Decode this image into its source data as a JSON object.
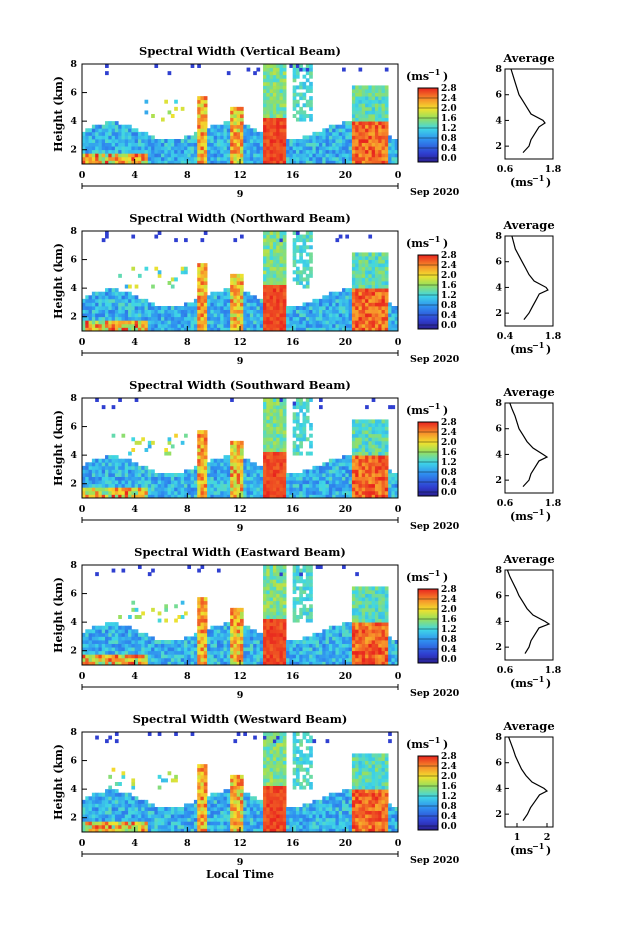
{
  "shared": {
    "ylabel": "Height (km)",
    "xlabel": "Local Time",
    "date_label": "Sep 2020",
    "colorbar_unit": "(ms",
    "colorbar_unit_exp": "−1",
    "colorbar_unit_close": ")",
    "average_title": "Average",
    "average_xlabel": "(ms",
    "average_xlabel_exp": "−1",
    "average_xlabel_close": ")"
  },
  "chart_data": [
    {
      "type": "heatmap",
      "title": "Spectral Width (Vertical Beam)",
      "xlabel": "",
      "ylabel": "Height (km)",
      "x_ticks": [
        "0",
        "4",
        "8",
        "12",
        "16",
        "20",
        "0"
      ],
      "y_ticks": [
        "2",
        "4",
        "6",
        "8"
      ],
      "xlim": [
        0,
        24
      ],
      "ylim": [
        1,
        8
      ],
      "date_ticks": [
        "9"
      ],
      "colorbar": {
        "ticks": [
          "0.0",
          "0.4",
          "0.8",
          "1.2",
          "1.6",
          "2.0",
          "2.4",
          "2.8"
        ],
        "range": [
          0,
          3
        ]
      },
      "average": {
        "title": "Average",
        "x_ticks": [
          "0.6",
          "1.8"
        ],
        "xlim": [
          0.6,
          1.8
        ],
        "y_ticks": [
          "2",
          "4",
          "6",
          "8"
        ],
        "height": [
          1.5,
          2.0,
          2.5,
          3.0,
          3.5,
          3.8,
          4.0,
          4.5,
          5.0,
          5.5,
          6.0,
          6.5,
          7.0,
          7.5,
          8.0
        ],
        "width": [
          1.05,
          1.2,
          1.25,
          1.35,
          1.45,
          1.6,
          1.55,
          1.25,
          1.15,
          1.05,
          0.95,
          0.9,
          0.85,
          0.8,
          0.75
        ]
      }
    },
    {
      "type": "heatmap",
      "title": "Spectral Width (Northward Beam)",
      "xlabel": "",
      "ylabel": "Height (km)",
      "x_ticks": [
        "0",
        "4",
        "8",
        "12",
        "16",
        "20",
        "0"
      ],
      "y_ticks": [
        "2",
        "4",
        "6",
        "8"
      ],
      "xlim": [
        0,
        24
      ],
      "ylim": [
        1,
        8
      ],
      "date_ticks": [
        "9"
      ],
      "colorbar": {
        "ticks": [
          "0.0",
          "0.4",
          "0.8",
          "1.2",
          "1.6",
          "2.0",
          "2.4",
          "2.8"
        ],
        "range": [
          0,
          3
        ]
      },
      "average": {
        "title": "Average",
        "x_ticks": [
          "0.4",
          "1.8"
        ],
        "xlim": [
          0.4,
          1.8
        ],
        "y_ticks": [
          "2",
          "4",
          "6",
          "8"
        ],
        "height": [
          1.5,
          2.0,
          2.5,
          3.0,
          3.5,
          3.8,
          4.0,
          4.5,
          5.0,
          5.5,
          6.0,
          6.5,
          7.0,
          7.5,
          8.0
        ],
        "width": [
          0.95,
          1.1,
          1.2,
          1.3,
          1.4,
          1.65,
          1.6,
          1.25,
          1.1,
          1.0,
          0.9,
          0.8,
          0.7,
          0.65,
          0.6
        ]
      }
    },
    {
      "type": "heatmap",
      "title": "Spectral Width (Southward Beam)",
      "xlabel": "",
      "ylabel": "Height (km)",
      "x_ticks": [
        "0",
        "4",
        "8",
        "12",
        "16",
        "20",
        "0"
      ],
      "y_ticks": [
        "2",
        "4",
        "6",
        "8"
      ],
      "xlim": [
        0,
        24
      ],
      "ylim": [
        1,
        8
      ],
      "date_ticks": [
        "9"
      ],
      "colorbar": {
        "ticks": [
          "0.0",
          "0.4",
          "0.8",
          "1.2",
          "1.6",
          "2.0",
          "2.4",
          "2.8"
        ],
        "range": [
          0,
          3
        ]
      },
      "average": {
        "title": "Average",
        "x_ticks": [
          "0.6",
          "1.8"
        ],
        "xlim": [
          0.6,
          1.8
        ],
        "y_ticks": [
          "2",
          "4",
          "6",
          "8"
        ],
        "height": [
          1.5,
          2.0,
          2.5,
          3.0,
          3.5,
          3.8,
          4.0,
          4.5,
          5.0,
          5.5,
          6.0,
          6.5,
          7.0,
          7.5,
          8.0
        ],
        "width": [
          1.05,
          1.2,
          1.25,
          1.35,
          1.45,
          1.65,
          1.55,
          1.3,
          1.15,
          1.05,
          0.95,
          0.9,
          0.85,
          0.78,
          0.72
        ]
      }
    },
    {
      "type": "heatmap",
      "title": "Spectral Width (Eastward Beam)",
      "xlabel": "",
      "ylabel": "Height (km)",
      "x_ticks": [
        "0",
        "4",
        "8",
        "12",
        "16",
        "20",
        "0"
      ],
      "y_ticks": [
        "2",
        "4",
        "6",
        "8"
      ],
      "xlim": [
        0,
        24
      ],
      "ylim": [
        1,
        8
      ],
      "date_ticks": [
        "9"
      ],
      "colorbar": {
        "ticks": [
          "0.0",
          "0.4",
          "0.8",
          "1.2",
          "1.6",
          "2.0",
          "2.4",
          "2.8"
        ],
        "range": [
          0,
          3
        ]
      },
      "average": {
        "title": "Average",
        "x_ticks": [
          "0.6",
          "1.8"
        ],
        "xlim": [
          0.6,
          1.8
        ],
        "y_ticks": [
          "2",
          "4",
          "6",
          "8"
        ],
        "height": [
          1.5,
          2.0,
          2.5,
          3.0,
          3.5,
          3.8,
          4.0,
          4.5,
          5.0,
          5.5,
          6.0,
          6.5,
          7.0,
          7.5,
          8.0
        ],
        "width": [
          1.1,
          1.2,
          1.25,
          1.35,
          1.45,
          1.7,
          1.6,
          1.3,
          1.15,
          1.05,
          0.95,
          0.88,
          0.8,
          0.72,
          0.66
        ]
      }
    },
    {
      "type": "heatmap",
      "title": "Spectral Width (Westward Beam)",
      "xlabel": "Local Time",
      "ylabel": "Height (km)",
      "x_ticks": [
        "0",
        "4",
        "8",
        "12",
        "16",
        "20",
        "0"
      ],
      "y_ticks": [
        "2",
        "4",
        "6",
        "8"
      ],
      "xlim": [
        0,
        24
      ],
      "ylim": [
        1,
        8
      ],
      "date_ticks": [
        "9"
      ],
      "colorbar": {
        "ticks": [
          "0.0",
          "0.4",
          "0.8",
          "1.2",
          "1.6",
          "2.0",
          "2.4",
          "2.8"
        ],
        "range": [
          0,
          3
        ]
      },
      "average": {
        "title": "Average",
        "x_ticks": [
          "1",
          "2"
        ],
        "xlim": [
          0.6,
          2.2
        ],
        "y_ticks": [
          "2",
          "4",
          "6",
          "8"
        ],
        "height": [
          1.5,
          2.0,
          2.5,
          3.0,
          3.5,
          3.8,
          4.0,
          4.5,
          5.0,
          5.5,
          6.0,
          6.5,
          7.0,
          7.5,
          8.0
        ],
        "width": [
          1.2,
          1.35,
          1.45,
          1.6,
          1.75,
          2.0,
          1.9,
          1.5,
          1.3,
          1.15,
          1.05,
          0.95,
          0.88,
          0.8,
          0.72
        ]
      }
    }
  ]
}
